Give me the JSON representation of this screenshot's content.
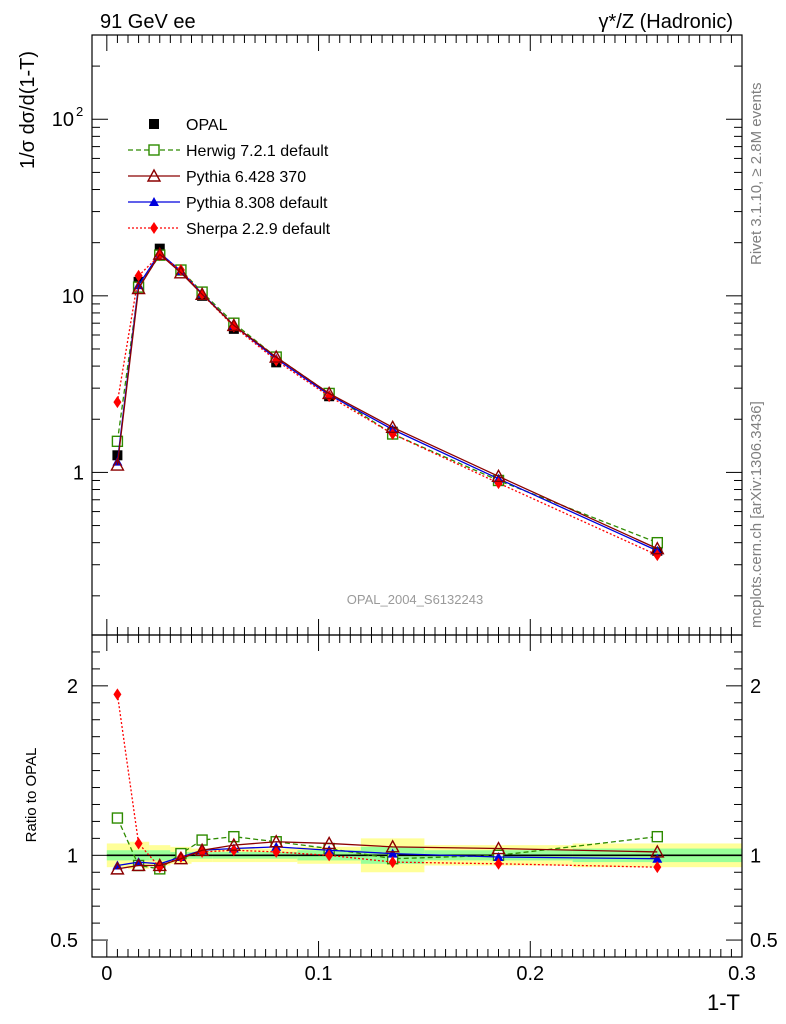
{
  "header": {
    "left": "91 GeV ee",
    "right": "γ*/Z (Hadronic)"
  },
  "side_labels": {
    "rivet": "Rivet 3.1.10, ≥ 2.8M events",
    "mcplots": "mcplots.cern.ch [arXiv:1306.3436]"
  },
  "watermark": "OPAL_2004_S6132243",
  "colors": {
    "opal": "#000000",
    "herwig": "#2e8b00",
    "pythia6": "#8b0000",
    "pythia8": "#0000dd",
    "sherpa": "#ff0000",
    "band_outer": "#ffff99",
    "band_inner": "#99ff99"
  },
  "chart_data": [
    {
      "type": "line",
      "panel": "main",
      "ylabel": "1/σ dσ/d(1-T)",
      "yscale": "log",
      "ylim": [
        0.12,
        300
      ],
      "xlim": [
        -0.007,
        0.3
      ],
      "yticks": [
        1,
        10,
        100
      ],
      "yticklabels": [
        "1",
        "10",
        "10^2"
      ],
      "x": [
        0.005,
        0.015,
        0.025,
        0.035,
        0.045,
        0.06,
        0.08,
        0.105,
        0.135,
        0.185,
        0.26
      ],
      "series": [
        {
          "name": "OPAL",
          "key": "opal",
          "marker": "square-filled",
          "line": "none",
          "values": [
            1.25,
            12.0,
            18.5,
            14.0,
            10.0,
            6.5,
            4.2,
            2.7,
            1.7,
            0.9,
            0.36
          ]
        },
        {
          "name": "Herwig 7.2.1 default",
          "key": "herwig",
          "marker": "square-open",
          "line": "dashed",
          "values": [
            1.5,
            11.2,
            17.0,
            14.0,
            10.5,
            7.0,
            4.5,
            2.8,
            1.65,
            0.9,
            0.4
          ]
        },
        {
          "name": "Pythia 6.428 370",
          "key": "pythia6",
          "marker": "triangle-open",
          "line": "solid",
          "values": [
            1.1,
            11.0,
            17.2,
            13.5,
            10.2,
            6.8,
            4.5,
            2.8,
            1.8,
            0.95,
            0.37
          ]
        },
        {
          "name": "Pythia 8.308 default",
          "key": "pythia8",
          "marker": "triangle-filled",
          "line": "solid",
          "values": [
            1.15,
            11.5,
            17.5,
            13.8,
            10.3,
            6.8,
            4.4,
            2.75,
            1.75,
            0.92,
            0.36
          ]
        },
        {
          "name": "Sherpa 2.2.9 default",
          "key": "sherpa",
          "marker": "diamond-filled",
          "line": "dotted",
          "values": [
            2.5,
            13.0,
            17.0,
            14.0,
            10.2,
            6.7,
            4.3,
            2.7,
            1.65,
            0.87,
            0.34
          ]
        }
      ]
    },
    {
      "type": "line",
      "panel": "ratio",
      "xlabel": "1-T",
      "ylabel": "Ratio to OPAL",
      "ylim": [
        0.4,
        2.3
      ],
      "xlim": [
        -0.007,
        0.3
      ],
      "xticks": [
        0,
        0.1,
        0.2,
        0.3
      ],
      "xticklabels": [
        "0",
        "0.1",
        "0.2",
        "0.3"
      ],
      "yticks": [
        0.5,
        1,
        2
      ],
      "yticklabels": [
        "0.5",
        "1",
        "2"
      ],
      "x": [
        0.005,
        0.015,
        0.025,
        0.035,
        0.045,
        0.06,
        0.08,
        0.105,
        0.135,
        0.185,
        0.26
      ],
      "bands": {
        "x_edges": [
          0.0,
          0.01,
          0.02,
          0.03,
          0.04,
          0.05,
          0.07,
          0.09,
          0.12,
          0.15,
          0.22,
          0.3
        ],
        "outer": [
          0.07,
          0.08,
          0.06,
          0.05,
          0.04,
          0.04,
          0.04,
          0.05,
          0.1,
          0.06,
          0.07
        ],
        "inner": [
          0.03,
          0.03,
          0.03,
          0.02,
          0.02,
          0.02,
          0.02,
          0.03,
          0.05,
          0.03,
          0.04
        ]
      },
      "series": [
        {
          "name": "Herwig 7.2.1 default",
          "key": "herwig",
          "marker": "square-open",
          "line": "dashed",
          "values": [
            1.22,
            0.94,
            0.92,
            1.01,
            1.09,
            1.11,
            1.08,
            1.04,
            0.98,
            1.0,
            1.11
          ]
        },
        {
          "name": "Pythia 6.428 370",
          "key": "pythia6",
          "marker": "triangle-open",
          "line": "solid",
          "values": [
            0.92,
            0.94,
            0.94,
            0.98,
            1.03,
            1.06,
            1.08,
            1.07,
            1.05,
            1.04,
            1.02
          ]
        },
        {
          "name": "Pythia 8.308 default",
          "key": "pythia8",
          "marker": "triangle-filled",
          "line": "solid",
          "values": [
            0.94,
            0.96,
            0.95,
            0.99,
            1.03,
            1.04,
            1.05,
            1.03,
            1.01,
            0.99,
            0.98
          ]
        },
        {
          "name": "Sherpa 2.2.9 default",
          "key": "sherpa",
          "marker": "diamond-filled",
          "line": "dotted",
          "values": [
            1.95,
            1.07,
            0.93,
            0.99,
            1.02,
            1.03,
            1.02,
            1.0,
            0.96,
            0.95,
            0.93
          ]
        }
      ]
    }
  ]
}
